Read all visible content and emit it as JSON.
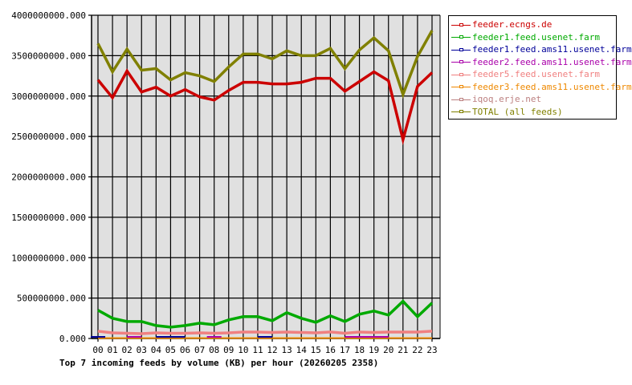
{
  "chart_data": {
    "type": "line",
    "title": "Top 7 incoming feeds by volume (KB) per hour (20260205 2358)",
    "xlabel": "",
    "ylabel": "",
    "ylim": [
      0,
      4000000000
    ],
    "grid": true,
    "legend_position": "right",
    "y_ticks": [
      "0.000",
      "500000000.000",
      "1000000000.000",
      "1500000000.000",
      "2000000000.000",
      "2500000000.000",
      "3000000000.000",
      "3500000000.000",
      "4000000000.000"
    ],
    "categories": [
      "00",
      "01",
      "02",
      "03",
      "04",
      "05",
      "06",
      "07",
      "08",
      "09",
      "10",
      "11",
      "12",
      "13",
      "14",
      "15",
      "16",
      "17",
      "18",
      "19",
      "20",
      "21",
      "22",
      "23"
    ],
    "series": [
      {
        "name": "feeder.ecngs.de",
        "color": "#cc0000",
        "values": [
          3200000000,
          2980000000,
          3310000000,
          3050000000,
          3110000000,
          3000000000,
          3080000000,
          2990000000,
          2950000000,
          3070000000,
          3170000000,
          3170000000,
          3150000000,
          3150000000,
          3170000000,
          3220000000,
          3220000000,
          3060000000,
          3180000000,
          3300000000,
          3190000000,
          2460000000,
          3120000000,
          3290000000
        ]
      },
      {
        "name": "feeder1.feed.usenet.farm",
        "color": "#00aa00",
        "values": [
          350000000,
          250000000,
          210000000,
          210000000,
          160000000,
          140000000,
          160000000,
          190000000,
          170000000,
          230000000,
          270000000,
          270000000,
          220000000,
          320000000,
          250000000,
          200000000,
          280000000,
          210000000,
          300000000,
          340000000,
          290000000,
          460000000,
          270000000,
          440000000
        ]
      },
      {
        "name": "feeder1.feed.ams11.usenet.farm",
        "color": "#000099",
        "values": [
          20000000,
          null,
          null,
          null,
          20000000,
          20000000,
          20000000,
          null,
          null,
          null,
          null,
          20000000,
          20000000,
          null,
          null,
          null,
          null,
          null,
          null,
          null,
          null,
          null,
          null,
          null
        ]
      },
      {
        "name": "feeder2.feed.ams11.usenet.farm",
        "color": "#aa00aa",
        "values": [
          null,
          null,
          20000000,
          20000000,
          null,
          null,
          null,
          null,
          20000000,
          null,
          null,
          null,
          null,
          null,
          null,
          null,
          null,
          20000000,
          20000000,
          20000000,
          20000000,
          null,
          null,
          null
        ]
      },
      {
        "name": "feeder5.feed.usenet.farm",
        "color": "#f08080",
        "values": [
          90000000,
          70000000,
          65000000,
          60000000,
          70000000,
          65000000,
          65000000,
          70000000,
          65000000,
          70000000,
          80000000,
          80000000,
          75000000,
          80000000,
          75000000,
          70000000,
          80000000,
          65000000,
          80000000,
          75000000,
          80000000,
          80000000,
          80000000,
          90000000
        ]
      },
      {
        "name": "feeder3.feed.ams11.usenet.farm",
        "color": "#ee8800",
        "values": [
          5000000,
          5000000,
          5000000,
          5000000,
          5000000,
          5000000,
          5000000,
          5000000,
          5000000,
          5000000,
          5000000,
          5000000,
          5000000,
          5000000,
          5000000,
          5000000,
          5000000,
          5000000,
          5000000,
          5000000,
          5000000,
          5000000,
          5000000,
          5000000
        ]
      },
      {
        "name": "iqoq.erje.net",
        "color": "#bc8080",
        "values": [
          5000000,
          5000000,
          5000000,
          5000000,
          5000000,
          5000000,
          5000000,
          5000000,
          5000000,
          5000000,
          5000000,
          5000000,
          5000000,
          5000000,
          5000000,
          5000000,
          5000000,
          5000000,
          5000000,
          5000000,
          5000000,
          5000000,
          5000000,
          5000000
        ]
      },
      {
        "name": "TOTAL (all feeds)",
        "color": "#808000",
        "values": [
          3650000000,
          3300000000,
          3580000000,
          3320000000,
          3340000000,
          3200000000,
          3290000000,
          3250000000,
          3180000000,
          3360000000,
          3520000000,
          3520000000,
          3460000000,
          3560000000,
          3500000000,
          3500000000,
          3590000000,
          3340000000,
          3570000000,
          3720000000,
          3560000000,
          3020000000,
          3490000000,
          3810000000
        ]
      }
    ]
  },
  "legend": {
    "items": [
      {
        "label": "feeder.ecngs.de",
        "color": "#cc0000"
      },
      {
        "label": "feeder1.feed.usenet.farm",
        "color": "#00aa00"
      },
      {
        "label": "feeder1.feed.ams11.usenet.farm",
        "color": "#000099"
      },
      {
        "label": "feeder2.feed.ams11.usenet.farm",
        "color": "#aa00aa"
      },
      {
        "label": "feeder5.feed.usenet.farm",
        "color": "#f08080"
      },
      {
        "label": "feeder3.feed.ams11.usenet.farm",
        "color": "#ee8800"
      },
      {
        "label": "iqoq.erje.net",
        "color": "#bc8080"
      },
      {
        "label": "TOTAL (all feeds)",
        "color": "#808000"
      }
    ]
  },
  "colors": {
    "plot_background": "#e0e0e0",
    "grid": "#000000"
  }
}
